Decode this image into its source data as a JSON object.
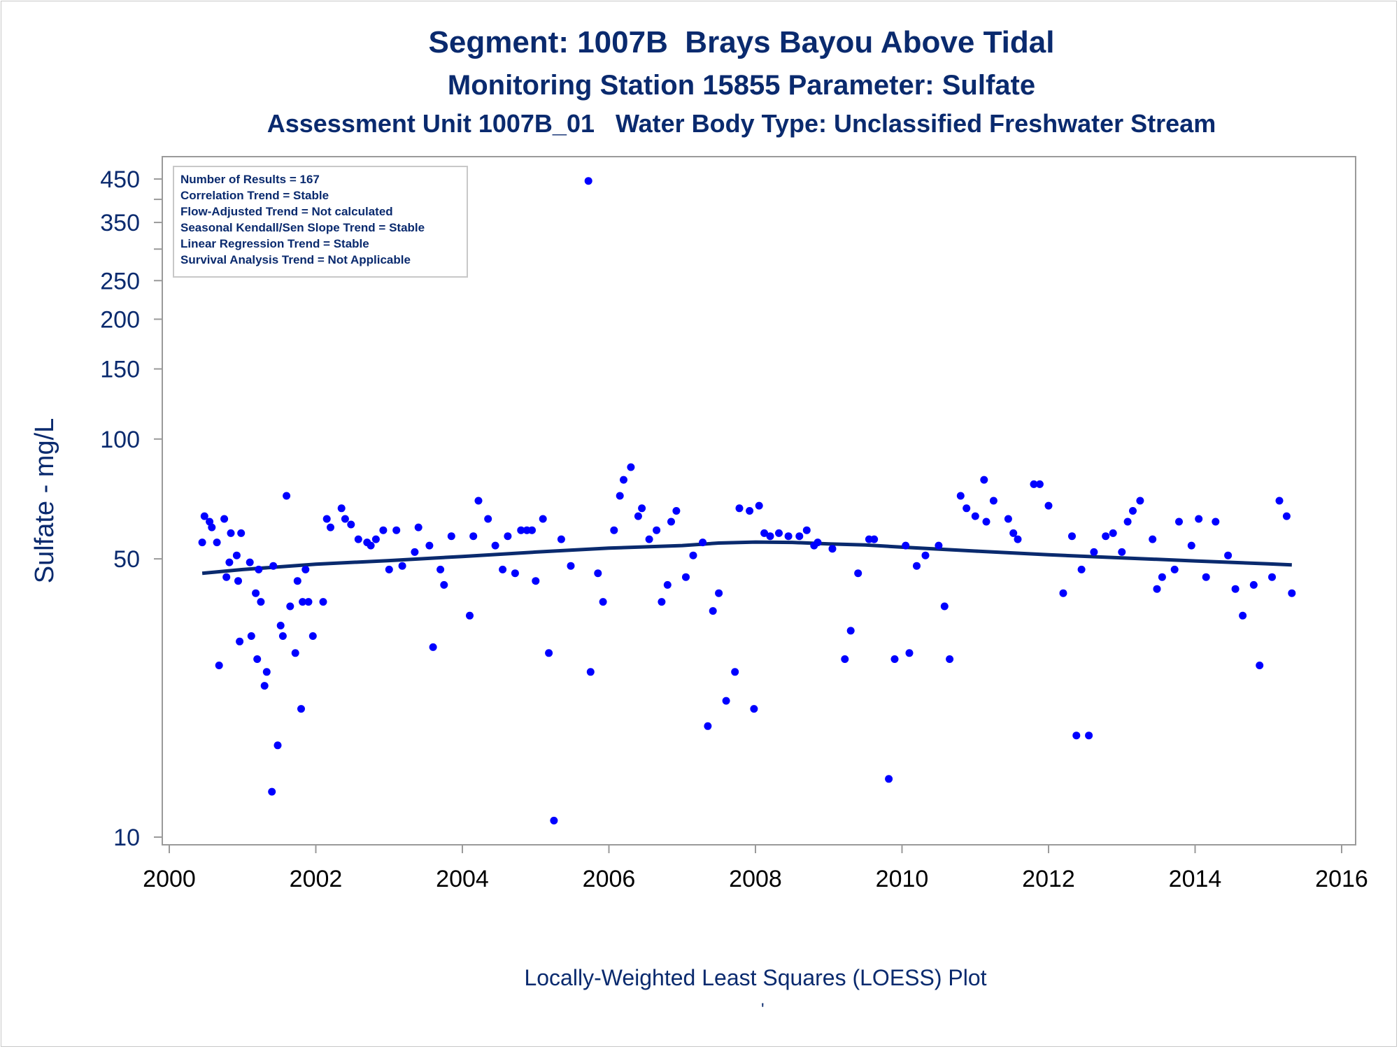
{
  "titles": {
    "line1": "Segment: 1007B  Brays Bayou Above Tidal",
    "line2": "Monitoring Station 15855 Parameter: Sulfate",
    "line3": "Assessment Unit 1007B_01   Water Body Type: Unclassified Freshwater Stream"
  },
  "footnote": "Locally-Weighted Least Squares (LOESS) Plot",
  "footnote_mark": "'",
  "colors": {
    "points": "#0000ff",
    "loess": "#0a2a6e",
    "text": "#0a2a6e",
    "axis": "#9a9a9a"
  },
  "chart_data": {
    "type": "scatter",
    "ylabel": "Sulfate - mg/L",
    "xlabel": "",
    "yscale": "log",
    "xlim": [
      2000,
      2016
    ],
    "ylim": [
      10,
      480
    ],
    "x_ticks": [
      2000,
      2002,
      2004,
      2006,
      2008,
      2010,
      2012,
      2014,
      2016
    ],
    "y_ticks": [
      10,
      50,
      100,
      150,
      200,
      250,
      350,
      450
    ],
    "y_minor_ticks": [
      300,
      400
    ],
    "legend_placement": "top-left",
    "stats_box": [
      "Number of Results = 167",
      "Correlation Trend = Stable",
      "Flow-Adjusted Trend = Not calculated",
      "Seasonal Kendall/Sen Slope Trend = Stable",
      "Linear Regression Trend = Stable",
      "Survival Analysis Trend = Not Applicable"
    ],
    "points": [
      [
        2000.45,
        55
      ],
      [
        2000.48,
        64
      ],
      [
        2000.55,
        62
      ],
      [
        2000.58,
        60
      ],
      [
        2000.65,
        55
      ],
      [
        2000.68,
        27
      ],
      [
        2000.75,
        63
      ],
      [
        2000.78,
        45
      ],
      [
        2000.82,
        49
      ],
      [
        2000.84,
        58
      ],
      [
        2000.92,
        51
      ],
      [
        2000.94,
        44
      ],
      [
        2000.96,
        31
      ],
      [
        2000.98,
        58
      ],
      [
        2001.1,
        49
      ],
      [
        2001.12,
        32
      ],
      [
        2001.18,
        41
      ],
      [
        2001.2,
        28
      ],
      [
        2001.22,
        47
      ],
      [
        2001.25,
        39
      ],
      [
        2001.3,
        24
      ],
      [
        2001.33,
        26
      ],
      [
        2001.4,
        13
      ],
      [
        2001.42,
        48
      ],
      [
        2001.48,
        17
      ],
      [
        2001.52,
        34
      ],
      [
        2001.55,
        32
      ],
      [
        2001.6,
        72
      ],
      [
        2001.65,
        38
      ],
      [
        2001.72,
        29
      ],
      [
        2001.75,
        44
      ],
      [
        2001.8,
        21
      ],
      [
        2001.82,
        39
      ],
      [
        2001.86,
        47
      ],
      [
        2001.9,
        39
      ],
      [
        2001.96,
        32
      ],
      [
        2002.1,
        39
      ],
      [
        2002.15,
        63
      ],
      [
        2002.2,
        60
      ],
      [
        2002.35,
        67
      ],
      [
        2002.4,
        63
      ],
      [
        2002.48,
        61
      ],
      [
        2002.58,
        56
      ],
      [
        2002.7,
        55
      ],
      [
        2002.75,
        54
      ],
      [
        2002.82,
        56
      ],
      [
        2002.92,
        59
      ],
      [
        2003.0,
        47
      ],
      [
        2003.1,
        59
      ],
      [
        2003.18,
        48
      ],
      [
        2003.35,
        52
      ],
      [
        2003.4,
        60
      ],
      [
        2003.55,
        54
      ],
      [
        2003.6,
        30
      ],
      [
        2003.7,
        47
      ],
      [
        2003.75,
        43
      ],
      [
        2003.85,
        57
      ],
      [
        2004.1,
        36
      ],
      [
        2004.15,
        57
      ],
      [
        2004.22,
        70
      ],
      [
        2004.35,
        63
      ],
      [
        2004.45,
        54
      ],
      [
        2004.55,
        47
      ],
      [
        2004.62,
        57
      ],
      [
        2004.72,
        46
      ],
      [
        2004.8,
        59
      ],
      [
        2004.88,
        59
      ],
      [
        2004.95,
        59
      ],
      [
        2005.0,
        44
      ],
      [
        2005.1,
        63
      ],
      [
        2005.18,
        29
      ],
      [
        2005.25,
        11
      ],
      [
        2005.35,
        56
      ],
      [
        2005.48,
        48
      ],
      [
        2005.72,
        445
      ],
      [
        2005.75,
        26
      ],
      [
        2005.85,
        46
      ],
      [
        2005.92,
        39
      ],
      [
        2006.07,
        59
      ],
      [
        2006.15,
        72
      ],
      [
        2006.2,
        79
      ],
      [
        2006.3,
        85
      ],
      [
        2006.4,
        64
      ],
      [
        2006.45,
        67
      ],
      [
        2006.55,
        56
      ],
      [
        2006.65,
        59
      ],
      [
        2006.72,
        39
      ],
      [
        2006.8,
        43
      ],
      [
        2006.85,
        62
      ],
      [
        2006.92,
        66
      ],
      [
        2007.05,
        45
      ],
      [
        2007.15,
        51
      ],
      [
        2007.28,
        55
      ],
      [
        2007.35,
        19
      ],
      [
        2007.42,
        37
      ],
      [
        2007.5,
        41
      ],
      [
        2007.6,
        22
      ],
      [
        2007.72,
        26
      ],
      [
        2007.78,
        67
      ],
      [
        2007.92,
        66
      ],
      [
        2007.98,
        21
      ],
      [
        2008.05,
        68
      ],
      [
        2008.12,
        58
      ],
      [
        2008.2,
        57
      ],
      [
        2008.32,
        58
      ],
      [
        2008.45,
        57
      ],
      [
        2008.6,
        57
      ],
      [
        2008.7,
        59
      ],
      [
        2008.8,
        54
      ],
      [
        2008.85,
        55
      ],
      [
        2009.05,
        53
      ],
      [
        2009.22,
        28
      ],
      [
        2009.3,
        33
      ],
      [
        2009.4,
        46
      ],
      [
        2009.55,
        56
      ],
      [
        2009.62,
        56
      ],
      [
        2009.82,
        14
      ],
      [
        2009.9,
        28
      ],
      [
        2010.05,
        54
      ],
      [
        2010.1,
        29
      ],
      [
        2010.2,
        48
      ],
      [
        2010.32,
        51
      ],
      [
        2010.5,
        54
      ],
      [
        2010.58,
        38
      ],
      [
        2010.65,
        28
      ],
      [
        2010.8,
        72
      ],
      [
        2010.88,
        67
      ],
      [
        2011.0,
        64
      ],
      [
        2011.12,
        79
      ],
      [
        2011.15,
        62
      ],
      [
        2011.25,
        70
      ],
      [
        2011.45,
        63
      ],
      [
        2011.52,
        58
      ],
      [
        2011.58,
        56
      ],
      [
        2011.8,
        77
      ],
      [
        2011.88,
        77
      ],
      [
        2012.0,
        68
      ],
      [
        2012.2,
        41
      ],
      [
        2012.32,
        57
      ],
      [
        2012.38,
        18
      ],
      [
        2012.45,
        47
      ],
      [
        2012.55,
        18
      ],
      [
        2012.62,
        52
      ],
      [
        2012.78,
        57
      ],
      [
        2012.88,
        58
      ],
      [
        2013.0,
        52
      ],
      [
        2013.08,
        62
      ],
      [
        2013.15,
        66
      ],
      [
        2013.25,
        70
      ],
      [
        2013.42,
        56
      ],
      [
        2013.48,
        42
      ],
      [
        2013.55,
        45
      ],
      [
        2013.72,
        47
      ],
      [
        2013.78,
        62
      ],
      [
        2013.95,
        54
      ],
      [
        2014.05,
        63
      ],
      [
        2014.15,
        45
      ],
      [
        2014.28,
        62
      ],
      [
        2014.45,
        51
      ],
      [
        2014.55,
        42
      ],
      [
        2014.65,
        36
      ],
      [
        2014.8,
        43
      ],
      [
        2014.88,
        27
      ],
      [
        2015.05,
        45
      ],
      [
        2015.15,
        70
      ],
      [
        2015.25,
        64
      ],
      [
        2015.32,
        41
      ]
    ],
    "loess": [
      [
        2000.45,
        46
      ],
      [
        2001.0,
        47
      ],
      [
        2002.0,
        48.5
      ],
      [
        2003.0,
        49.5
      ],
      [
        2004.0,
        50.7
      ],
      [
        2005.0,
        52
      ],
      [
        2006.0,
        53.2
      ],
      [
        2007.0,
        54
      ],
      [
        2007.5,
        54.8
      ],
      [
        2008.0,
        55.1
      ],
      [
        2008.5,
        55.0
      ],
      [
        2009.0,
        54.5
      ],
      [
        2009.5,
        54.2
      ],
      [
        2010.0,
        53.5
      ],
      [
        2011.0,
        52.3
      ],
      [
        2012.0,
        51.2
      ],
      [
        2013.0,
        50.3
      ],
      [
        2014.0,
        49.4
      ],
      [
        2015.0,
        48.6
      ],
      [
        2015.32,
        48.3
      ]
    ]
  }
}
